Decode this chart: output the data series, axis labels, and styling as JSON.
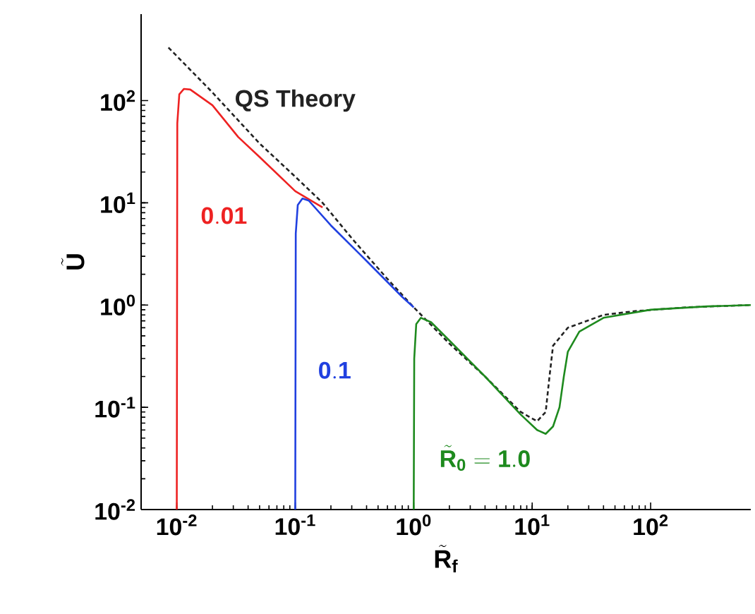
{
  "chart_data": {
    "type": "line",
    "log": "xy",
    "xlabel": "\\tilde{\\mathbf{R}}_{\\mathbf{f}}",
    "ylabel": "\\tilde{\\mathbf{U}}",
    "xlim": [
      0.005,
      700
    ],
    "ylim": [
      0.01,
      700
    ],
    "xticks": [
      {
        "value": 0.01,
        "label": "10$^{-2}$"
      },
      {
        "value": 0.1,
        "label": "10$^{-1}$"
      },
      {
        "value": 1,
        "label": "10$^{0}$"
      },
      {
        "value": 10,
        "label": "10$^{1}$"
      },
      {
        "value": 100,
        "label": "10$^{2}$"
      }
    ],
    "yticks": [
      {
        "value": 0.01,
        "label": "10$^{-2}$"
      },
      {
        "value": 0.1,
        "label": "10$^{-1}$"
      },
      {
        "value": 1,
        "label": "10$^{0}$"
      },
      {
        "value": 10,
        "label": "10$^{1}$"
      },
      {
        "value": 100,
        "label": "10$^{2}$"
      }
    ],
    "series": [
      {
        "name": "\\textbf{QS Theory}",
        "color": "#222222",
        "line_style": "dashed",
        "x": [
          0.0085,
          0.02,
          0.05,
          0.1,
          0.17,
          0.3,
          0.6,
          1,
          2,
          4,
          8,
          11,
          13,
          14,
          15,
          20,
          40,
          72,
          200,
          700
        ],
        "values": [
          330,
          120,
          38,
          18,
          10,
          4.5,
          1.8,
          0.95,
          0.42,
          0.2,
          0.09,
          0.073,
          0.09,
          0.2,
          0.4,
          0.6,
          0.8,
          0.87,
          0.95,
          1.0
        ]
      },
      {
        "name": "\\mathbf{0.01}",
        "color": "#ee2222",
        "line_style": "solid",
        "x": [
          0.01,
          0.0101,
          0.0105,
          0.0115,
          0.013,
          0.02,
          0.033,
          0.05,
          0.1,
          0.17
        ],
        "values": [
          0.01,
          60,
          115,
          130,
          128,
          90,
          44,
          28,
          13,
          9
        ]
      },
      {
        "name": "\\mathbf{0.1}",
        "color": "#2040e0",
        "line_style": "solid",
        "x": [
          0.1,
          0.101,
          0.105,
          0.115,
          0.13,
          0.2,
          0.4,
          0.8,
          1
        ],
        "values": [
          0.01,
          5,
          9.5,
          11,
          10.5,
          6,
          2.7,
          1.2,
          0.95
        ]
      },
      {
        "name": "\\tilde{\\mathbf{R}}_{\\mathbf{0}} = \\mathbf{1.0}",
        "color": "#1e8a1e",
        "line_style": "solid",
        "x": [
          1,
          1.01,
          1.05,
          1.15,
          1.4,
          2,
          4,
          8,
          11,
          13,
          15,
          17,
          18.5,
          20,
          25,
          40,
          100,
          300,
          700
        ],
        "values": [
          0.01,
          0.3,
          0.65,
          0.75,
          0.68,
          0.45,
          0.2,
          0.085,
          0.06,
          0.055,
          0.065,
          0.1,
          0.2,
          0.35,
          0.55,
          0.75,
          0.9,
          0.97,
          1.0
        ]
      }
    ]
  }
}
